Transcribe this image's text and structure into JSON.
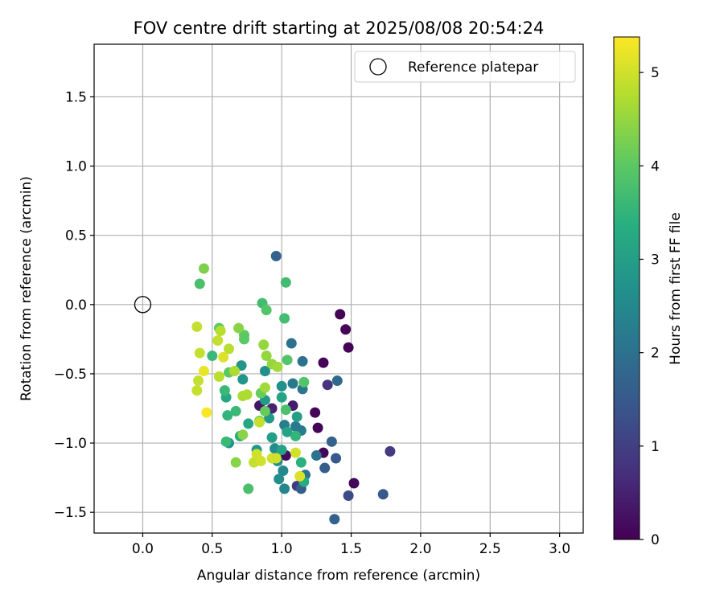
{
  "chart_data": {
    "type": "scatter",
    "title": "FOV centre drift starting at 2025/08/08 20:54:24",
    "xlabel": "Angular distance from reference (arcmin)",
    "ylabel": "Rotation from reference (arcmin)",
    "xlim": [
      -0.35,
      3.17
    ],
    "ylim": [
      -1.65,
      1.88
    ],
    "xticks": [
      0.0,
      0.5,
      1.0,
      1.5,
      2.0,
      2.5,
      3.0
    ],
    "xtick_labels": [
      "0.0",
      "0.5",
      "1.0",
      "1.5",
      "2.0",
      "2.5",
      "3.0"
    ],
    "yticks": [
      -1.5,
      -1.0,
      -0.5,
      0.0,
      0.5,
      1.0,
      1.5
    ],
    "ytick_labels": [
      "−1.5",
      "−1.0",
      "−0.5",
      "0.0",
      "0.5",
      "1.0",
      "1.5"
    ],
    "grid": true,
    "legend": {
      "placement": "upper right",
      "label": "Reference platepar"
    },
    "reference_point": {
      "x": 0.0,
      "y": 0.0
    },
    "colorbar": {
      "label": "Hours from first FF file",
      "range": [
        0,
        5.38
      ],
      "ticks": [
        0,
        1,
        2,
        3,
        4,
        5
      ],
      "tick_labels": [
        "0",
        "1",
        "2",
        "3",
        "4",
        "5"
      ],
      "colormap": "viridis"
    },
    "points": [
      {
        "x": 1.42,
        "y": -0.07,
        "c": 0.05
      },
      {
        "x": 1.46,
        "y": -0.18,
        "c": 0.05
      },
      {
        "x": 1.48,
        "y": -0.31,
        "c": 0.05
      },
      {
        "x": 1.3,
        "y": -0.42,
        "c": 0.05
      },
      {
        "x": 1.24,
        "y": -0.78,
        "c": 0.05
      },
      {
        "x": 1.26,
        "y": -0.89,
        "c": 0.05
      },
      {
        "x": 1.3,
        "y": -1.07,
        "c": 0.1
      },
      {
        "x": 1.52,
        "y": -1.29,
        "c": 0.1
      },
      {
        "x": 1.03,
        "y": -1.09,
        "c": 0.15
      },
      {
        "x": 0.84,
        "y": -0.73,
        "c": 0.3
      },
      {
        "x": 1.08,
        "y": -0.73,
        "c": 0.4
      },
      {
        "x": 0.93,
        "y": -0.75,
        "c": 0.5
      },
      {
        "x": 0.9,
        "y": -0.77,
        "c": 0.6
      },
      {
        "x": 1.33,
        "y": -0.58,
        "c": 0.8
      },
      {
        "x": 1.78,
        "y": -1.06,
        "c": 0.9
      },
      {
        "x": 1.11,
        "y": -1.31,
        "c": 0.9
      },
      {
        "x": 1.48,
        "y": -1.38,
        "c": 1.2
      },
      {
        "x": 1.73,
        "y": -1.37,
        "c": 1.5
      },
      {
        "x": 1.39,
        "y": -1.11,
        "c": 1.5
      },
      {
        "x": 1.31,
        "y": -1.18,
        "c": 1.6
      },
      {
        "x": 1.14,
        "y": -1.33,
        "c": 1.6
      },
      {
        "x": 1.36,
        "y": -0.99,
        "c": 1.7
      },
      {
        "x": 1.38,
        "y": -1.55,
        "c": 1.7
      },
      {
        "x": 0.96,
        "y": 0.35,
        "c": 1.7
      },
      {
        "x": 1.4,
        "y": -0.55,
        "c": 1.8
      },
      {
        "x": 1.15,
        "y": -0.41,
        "c": 2.0
      },
      {
        "x": 1.07,
        "y": -0.28,
        "c": 2.0
      },
      {
        "x": 1.25,
        "y": -1.09,
        "c": 2.0
      },
      {
        "x": 1.17,
        "y": -1.23,
        "c": 2.1
      },
      {
        "x": 1.15,
        "y": -0.61,
        "c": 2.1
      },
      {
        "x": 1.08,
        "y": -0.57,
        "c": 2.2
      },
      {
        "x": 1.1,
        "y": -0.88,
        "c": 2.2
      },
      {
        "x": 1.14,
        "y": -0.91,
        "c": 2.2
      },
      {
        "x": 1.02,
        "y": -0.87,
        "c": 2.3
      },
      {
        "x": 1.02,
        "y": -1.33,
        "c": 2.4
      },
      {
        "x": 1.01,
        "y": -1.2,
        "c": 2.5
      },
      {
        "x": 0.97,
        "y": -1.13,
        "c": 2.6
      },
      {
        "x": 0.98,
        "y": -1.26,
        "c": 2.6
      },
      {
        "x": 0.95,
        "y": -1.04,
        "c": 2.6
      },
      {
        "x": 1.0,
        "y": -0.59,
        "c": 2.7
      },
      {
        "x": 0.88,
        "y": -0.48,
        "c": 2.7
      },
      {
        "x": 0.72,
        "y": -0.54,
        "c": 2.8
      },
      {
        "x": 0.71,
        "y": -0.44,
        "c": 2.8
      },
      {
        "x": 0.82,
        "y": -1.05,
        "c": 2.8
      },
      {
        "x": 0.62,
        "y": -1.0,
        "c": 2.8
      },
      {
        "x": 0.88,
        "y": -0.69,
        "c": 2.9
      },
      {
        "x": 0.91,
        "y": -0.82,
        "c": 2.9
      },
      {
        "x": 0.93,
        "y": -0.96,
        "c": 3.0
      },
      {
        "x": 1.11,
        "y": -0.81,
        "c": 3.0
      },
      {
        "x": 1.0,
        "y": -0.67,
        "c": 3.1
      },
      {
        "x": 1.04,
        "y": -0.92,
        "c": 3.1
      },
      {
        "x": 1.0,
        "y": -1.05,
        "c": 3.1
      },
      {
        "x": 0.76,
        "y": -0.86,
        "c": 3.2
      },
      {
        "x": 0.6,
        "y": -0.67,
        "c": 3.2
      },
      {
        "x": 0.7,
        "y": -0.95,
        "c": 3.3
      },
      {
        "x": 1.16,
        "y": -1.28,
        "c": 3.3
      },
      {
        "x": 1.14,
        "y": -1.14,
        "c": 3.4
      },
      {
        "x": 1.1,
        "y": -0.95,
        "c": 3.5
      },
      {
        "x": 0.61,
        "y": -0.8,
        "c": 3.5
      },
      {
        "x": 0.6,
        "y": -0.99,
        "c": 3.6
      },
      {
        "x": 0.5,
        "y": -0.37,
        "c": 3.6
      },
      {
        "x": 0.59,
        "y": -0.62,
        "c": 3.6
      },
      {
        "x": 0.67,
        "y": -0.77,
        "c": 3.6
      },
      {
        "x": 0.86,
        "y": 0.01,
        "c": 3.7
      },
      {
        "x": 1.03,
        "y": 0.16,
        "c": 3.7
      },
      {
        "x": 1.02,
        "y": -0.1,
        "c": 3.7
      },
      {
        "x": 0.41,
        "y": 0.15,
        "c": 3.8
      },
      {
        "x": 0.76,
        "y": -1.33,
        "c": 3.8
      },
      {
        "x": 1.03,
        "y": -0.76,
        "c": 3.8
      },
      {
        "x": 0.89,
        "y": -0.04,
        "c": 3.9
      },
      {
        "x": 1.04,
        "y": -0.4,
        "c": 3.9
      },
      {
        "x": 1.16,
        "y": -0.56,
        "c": 3.9
      },
      {
        "x": 0.73,
        "y": -0.22,
        "c": 4.0
      },
      {
        "x": 0.73,
        "y": -0.25,
        "c": 4.0
      },
      {
        "x": 0.62,
        "y": -0.49,
        "c": 4.0
      },
      {
        "x": 0.55,
        "y": -0.17,
        "c": 4.0
      },
      {
        "x": 0.85,
        "y": -0.64,
        "c": 4.1
      },
      {
        "x": 0.88,
        "y": -0.77,
        "c": 4.1
      },
      {
        "x": 0.84,
        "y": -0.84,
        "c": 4.2
      },
      {
        "x": 0.44,
        "y": 0.26,
        "c": 4.3
      },
      {
        "x": 0.69,
        "y": -0.17,
        "c": 4.4
      },
      {
        "x": 0.67,
        "y": -1.14,
        "c": 4.4
      },
      {
        "x": 0.72,
        "y": -0.94,
        "c": 4.4
      },
      {
        "x": 0.87,
        "y": -0.29,
        "c": 4.5
      },
      {
        "x": 0.89,
        "y": -0.37,
        "c": 4.5
      },
      {
        "x": 0.93,
        "y": -0.43,
        "c": 4.5
      },
      {
        "x": 0.97,
        "y": -0.45,
        "c": 4.6
      },
      {
        "x": 0.88,
        "y": -0.6,
        "c": 4.6
      },
      {
        "x": 0.72,
        "y": -0.66,
        "c": 4.7
      },
      {
        "x": 0.75,
        "y": -0.65,
        "c": 4.7
      },
      {
        "x": 0.66,
        "y": -0.48,
        "c": 4.7
      },
      {
        "x": 0.62,
        "y": -0.32,
        "c": 4.8
      },
      {
        "x": 0.55,
        "y": -0.52,
        "c": 4.8
      },
      {
        "x": 0.56,
        "y": -0.19,
        "c": 4.8
      },
      {
        "x": 0.54,
        "y": -0.26,
        "c": 4.9
      },
      {
        "x": 0.39,
        "y": -0.16,
        "c": 4.9
      },
      {
        "x": 0.4,
        "y": -0.55,
        "c": 4.9
      },
      {
        "x": 0.39,
        "y": -0.62,
        "c": 4.9
      },
      {
        "x": 0.41,
        "y": -0.35,
        "c": 4.9
      },
      {
        "x": 0.84,
        "y": -0.85,
        "c": 4.9
      },
      {
        "x": 0.8,
        "y": -1.14,
        "c": 4.9
      },
      {
        "x": 0.85,
        "y": -1.13,
        "c": 5.0
      },
      {
        "x": 0.82,
        "y": -1.08,
        "c": 5.0
      },
      {
        "x": 1.1,
        "y": -1.07,
        "c": 5.0
      },
      {
        "x": 0.96,
        "y": -1.11,
        "c": 5.0
      },
      {
        "x": 0.93,
        "y": -1.11,
        "c": 5.0
      },
      {
        "x": 1.13,
        "y": -1.24,
        "c": 5.1
      },
      {
        "x": 0.58,
        "y": -0.38,
        "c": 5.1
      },
      {
        "x": 0.44,
        "y": -0.48,
        "c": 5.2
      },
      {
        "x": 0.46,
        "y": -0.78,
        "c": 5.35
      }
    ]
  }
}
